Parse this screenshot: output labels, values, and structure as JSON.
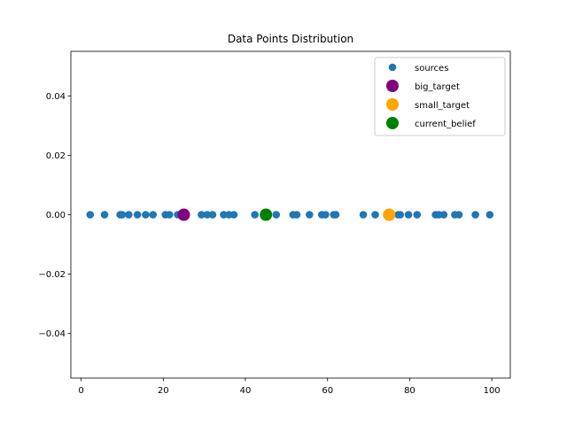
{
  "chart_data": {
    "type": "scatter",
    "title": "Data Points Distribution",
    "xlabel": "",
    "ylabel": "",
    "xlim": [
      -2.5,
      104.5
    ],
    "ylim": [
      -0.055,
      0.055
    ],
    "xticks": [
      0,
      20,
      40,
      60,
      80,
      100
    ],
    "xtick_labels": [
      "0",
      "20",
      "40",
      "60",
      "80",
      "100"
    ],
    "yticks": [
      -0.04,
      -0.02,
      0.0,
      0.02,
      0.04
    ],
    "ytick_labels": [
      "−0.04",
      "−0.02",
      "0.00",
      "0.02",
      "0.04"
    ],
    "grid": false,
    "legend_position": "top-right",
    "series": [
      {
        "name": "sources",
        "color": "#1f77b4",
        "marker_size": "small",
        "x": [
          2.2,
          5.7,
          9.5,
          10.0,
          11.6,
          13.7,
          15.7,
          17.5,
          20.5,
          21.5,
          23.5,
          25.2,
          29.3,
          30.7,
          32.0,
          34.7,
          36.0,
          37.2,
          42.3,
          47.5,
          51.6,
          52.5,
          55.6,
          58.6,
          59.5,
          61.5,
          62.0,
          68.7,
          71.6,
          77.2,
          77.7,
          79.7,
          81.8,
          86.3,
          87.1,
          88.3,
          91.0,
          92.0,
          96.0,
          99.5
        ],
        "y": [
          0,
          0,
          0,
          0,
          0,
          0,
          0,
          0,
          0,
          0,
          0,
          0,
          0,
          0,
          0,
          0,
          0,
          0,
          0,
          0,
          0,
          0,
          0,
          0,
          0,
          0,
          0,
          0,
          0,
          0,
          0,
          0,
          0,
          0,
          0,
          0,
          0,
          0,
          0,
          0
        ]
      },
      {
        "name": "big_target",
        "color": "#800080",
        "marker_size": "large",
        "x": [
          25
        ],
        "y": [
          0
        ]
      },
      {
        "name": "small_target",
        "color": "#ffa500",
        "marker_size": "large",
        "x": [
          75
        ],
        "y": [
          0
        ]
      },
      {
        "name": "current_belief",
        "color": "#008000",
        "marker_size": "large",
        "x": [
          45
        ],
        "y": [
          0
        ]
      }
    ]
  }
}
